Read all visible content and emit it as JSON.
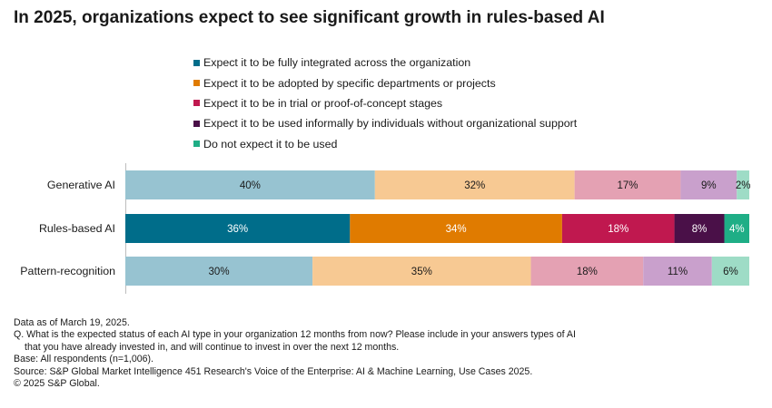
{
  "title": "In 2025, organizations expect to see significant growth in rules-based AI",
  "legend": [
    {
      "label": "Expect it to be fully integrated across the organization",
      "color": "#006d8a"
    },
    {
      "label": "Expect it to be adopted by specific departments or projects",
      "color": "#e07b00"
    },
    {
      "label": "Expect it to be in trial or proof-of-concept stages",
      "color": "#c0184f"
    },
    {
      "label": "Expect it to be used informally by individuals without organizational support",
      "color": "#4a1048"
    },
    {
      "label": "Do not expect it to be used",
      "color": "#1fae86"
    }
  ],
  "chart_data": {
    "type": "bar",
    "orientation": "horizontal",
    "stacked": true,
    "categories": [
      "Generative AI",
      "Rules-based AI",
      "Pattern-recognition"
    ],
    "series": [
      {
        "name": "Expect it to be fully integrated across the organization",
        "values": [
          40,
          36,
          30
        ],
        "labels": [
          "40%",
          "36%",
          "30%"
        ]
      },
      {
        "name": "Expect it to be adopted by specific departments or projects",
        "values": [
          32,
          34,
          35
        ],
        "labels": [
          "32%",
          "34%",
          "35%"
        ]
      },
      {
        "name": "Expect it to be in trial or proof-of-concept stages",
        "values": [
          17,
          18,
          18
        ],
        "labels": [
          "17%",
          "18%",
          "18%"
        ]
      },
      {
        "name": "Expect it to be used informally by individuals without organizational support",
        "values": [
          9,
          8,
          11
        ],
        "labels": [
          "9%",
          "8%",
          "11%"
        ]
      },
      {
        "name": "Do not expect it to be used",
        "values": [
          2,
          4,
          6
        ],
        "labels": [
          "2%",
          "4%",
          "6%"
        ]
      }
    ],
    "colors_full": [
      "#006d8a",
      "#e07b00",
      "#c0184f",
      "#4a1048",
      "#1fae86"
    ],
    "colors_muted": [
      "#97c3d1",
      "#f7c993",
      "#e4a1b3",
      "#c9a0cc",
      "#9edcc6"
    ],
    "highlighted_category": "Rules-based AI",
    "xlim": [
      0,
      100
    ]
  },
  "notes": {
    "line1": "Data as of March 19, 2025.",
    "line2": "Q. What is the expected status of each AI type in your organization 12 months from now? Please include in your answers types of AI",
    "line3": "that you have already invested in, and will continue to invest in over the next 12 months.",
    "line4": "Base: All respondents (n=1,006).",
    "line5": "Source: S&P Global Market Intelligence 451 Research's Voice of the Enterprise: AI & Machine Learning, Use Cases 2025.",
    "line6": "© 2025 S&P Global."
  }
}
